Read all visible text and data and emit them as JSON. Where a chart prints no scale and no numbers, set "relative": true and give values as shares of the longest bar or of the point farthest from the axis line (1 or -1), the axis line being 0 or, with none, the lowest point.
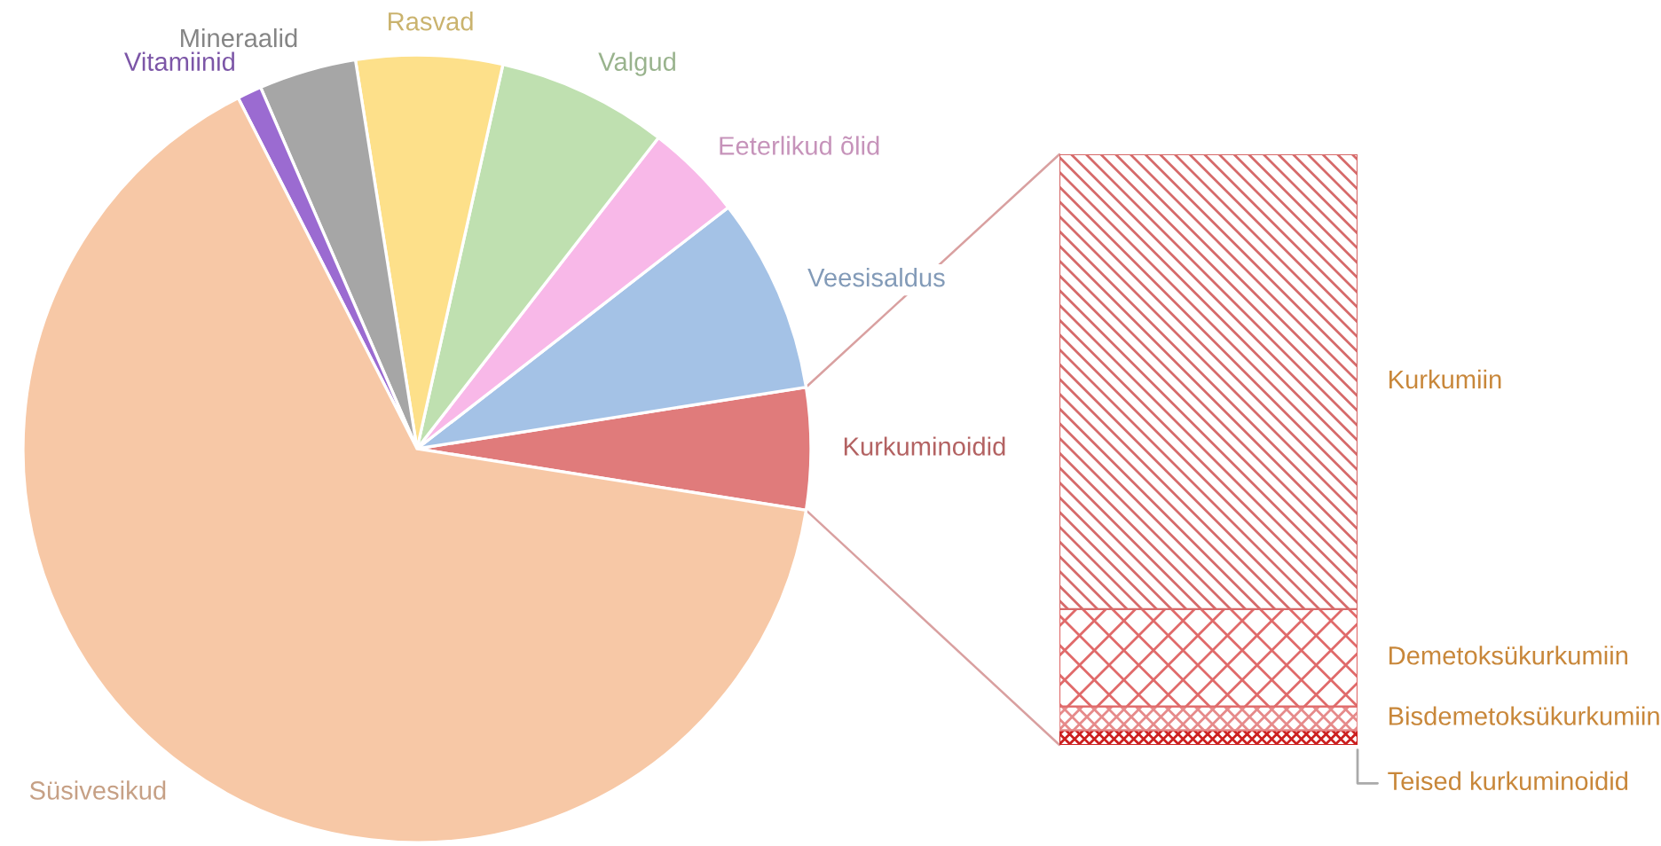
{
  "chart_data": [
    {
      "type": "pie",
      "categories": [
        "Kurkuminoidid",
        "Veesisaldus",
        "Eeterlikud õlid",
        "Valgud",
        "Rasvad",
        "Mineraalid",
        "Vitamiinid",
        "Süsivesikud"
      ],
      "values": [
        5,
        8,
        4,
        7,
        6,
        4,
        1,
        65
      ],
      "colors": [
        "#e07b7b",
        "#a4c2e6",
        "#f8b8e8",
        "#bfe0b0",
        "#fde08a",
        "#a6a6a6",
        "#9b6bd1",
        "#f7c8a6"
      ]
    },
    {
      "type": "bar",
      "stacked": true,
      "relative": true,
      "categories": [
        null
      ],
      "series": [
        {
          "name": "Teised kurkuminoidid",
          "color": "#cc1f1f",
          "values": [
            0.025
          ]
        },
        {
          "name": "Bisdemetoksükurkumiin",
          "color": "#e68a8a",
          "values": [
            0.04
          ]
        },
        {
          "name": "Demetoksükurkumiin",
          "color": "#e06a6a",
          "values": [
            0.165
          ]
        },
        {
          "name": "Kurkumiin",
          "color": "#d66a6a",
          "values": [
            0.77
          ]
        }
      ]
    }
  ]
}
